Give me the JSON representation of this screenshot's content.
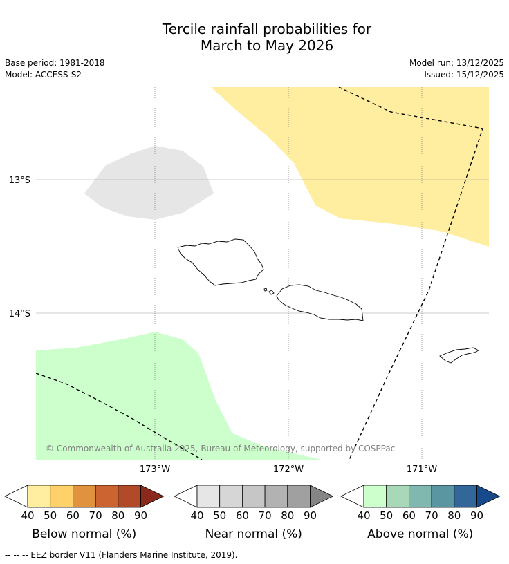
{
  "title": {
    "line1": "Tercile rainfall probabilities for",
    "line2": "March to May 2026"
  },
  "meta": {
    "base_period": "Base period: 1981-2018",
    "model": "Model: ACCESS-S2",
    "model_run": "Model run: 13/12/2025",
    "issued": "Issued: 15/12/2025"
  },
  "map": {
    "lat_labels": [
      "13°S",
      "14°S"
    ],
    "lon_labels": [
      "173°W",
      "172°W",
      "171°W"
    ],
    "copyright": "© Commonwealth of Australia 2025, Bureau of Meteorology, supported by COSPPac",
    "regions": {
      "below_normal_color": "#FFEDA0",
      "near_normal_color": "#E6E6E6",
      "above_normal_color": "#CCFFCC"
    }
  },
  "colorbars": [
    {
      "title": "Below normal (%)",
      "ticks": [
        "40",
        "50",
        "60",
        "70",
        "80",
        "90"
      ],
      "colors": [
        "#FFEDA0",
        "#FED16A",
        "#E0923F",
        "#CC6432",
        "#B04A28",
        "#8B2A1C"
      ]
    },
    {
      "title": "Near normal (%)",
      "ticks": [
        "40",
        "50",
        "60",
        "70",
        "80",
        "90"
      ],
      "colors": [
        "#E6E6E6",
        "#D6D6D6",
        "#C6C6C6",
        "#B2B2B2",
        "#A0A0A0",
        "#858585"
      ]
    },
    {
      "title": "Above normal (%)",
      "ticks": [
        "40",
        "50",
        "60",
        "70",
        "80",
        "90"
      ],
      "colors": [
        "#CCFFCC",
        "#A8D8B8",
        "#80B8B0",
        "#5A95A2",
        "#336699",
        "#174A8A"
      ]
    }
  ],
  "footer": "--  --  -- EEZ border V11 (Flanders Marine Institute, 2019)."
}
